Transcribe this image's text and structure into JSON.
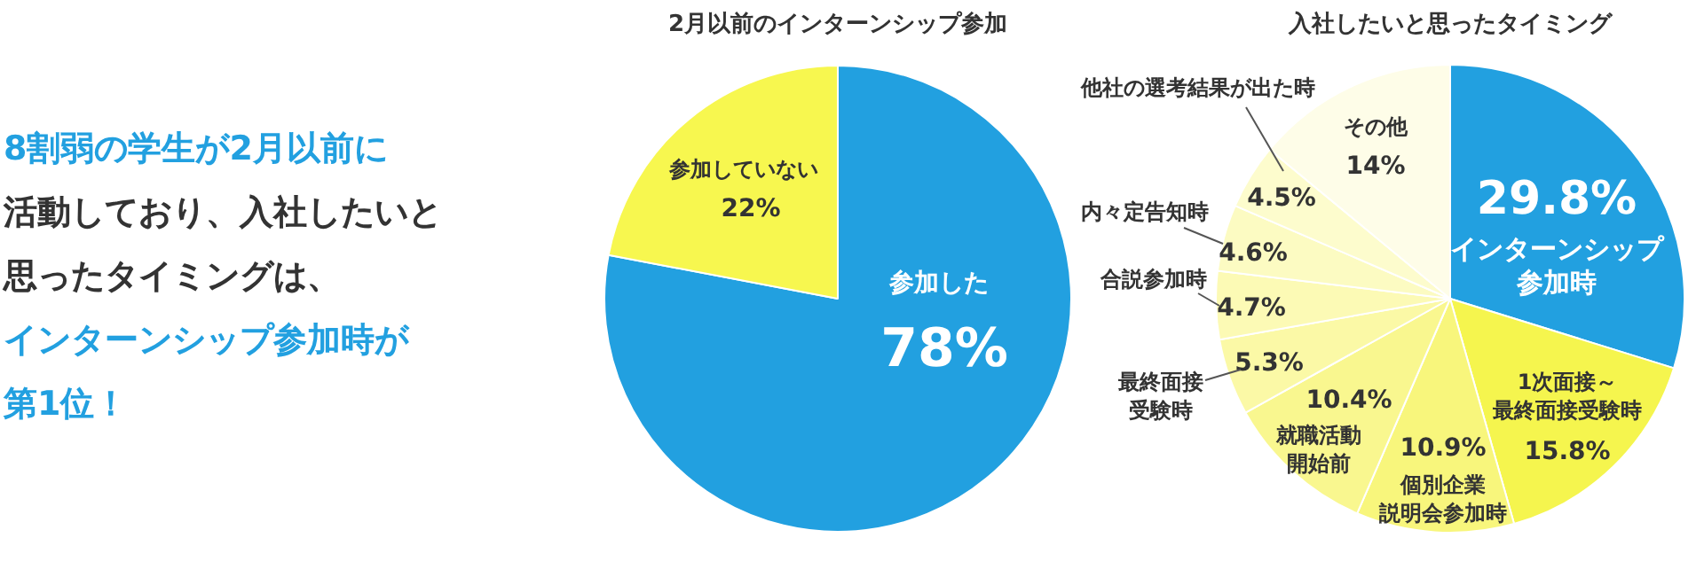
{
  "chart_data": [
    {
      "type": "other",
      "annotations": [
        "8割弱の学生が2月以前に",
        "活動しており、入社したいと",
        "思ったタイミングは、",
        "インターンシップ参加時が",
        "第1位！"
      ]
    },
    {
      "type": "pie",
      "title": "2月以前のインターンシップ参加",
      "categories": [
        "参加した",
        "参加していない"
      ],
      "values": [
        78,
        22
      ],
      "value_labels": [
        "78%",
        "22%"
      ],
      "colors": [
        "#22a0e0",
        "#f7f74f"
      ],
      "legend": false
    },
    {
      "type": "pie",
      "title": "入社したいと思ったタイミング",
      "categories": [
        "インターンシップ参加時",
        "1次面接～最終面接受験時",
        "個別企業説明会参加時",
        "就職活動開始前",
        "最終面接受験時",
        "合説参加時",
        "内々定告知時",
        "他社の選考結果が出た時",
        "その他"
      ],
      "values": [
        29.8,
        15.8,
        10.9,
        10.4,
        5.3,
        4.7,
        4.6,
        4.5,
        14
      ],
      "value_labels": [
        "29.8%",
        "15.8%",
        "10.9%",
        "10.4%",
        "5.3%",
        "4.7%",
        "4.6%",
        "4.5%",
        "14%"
      ],
      "colors": [
        "#22a0e0",
        "#f5f54e",
        "#f8f67c",
        "#f9f78f",
        "#fbf9a6",
        "#fcfab5",
        "#fcfbc2",
        "#fdfccd",
        "#fefde8"
      ],
      "legend": false
    }
  ]
}
